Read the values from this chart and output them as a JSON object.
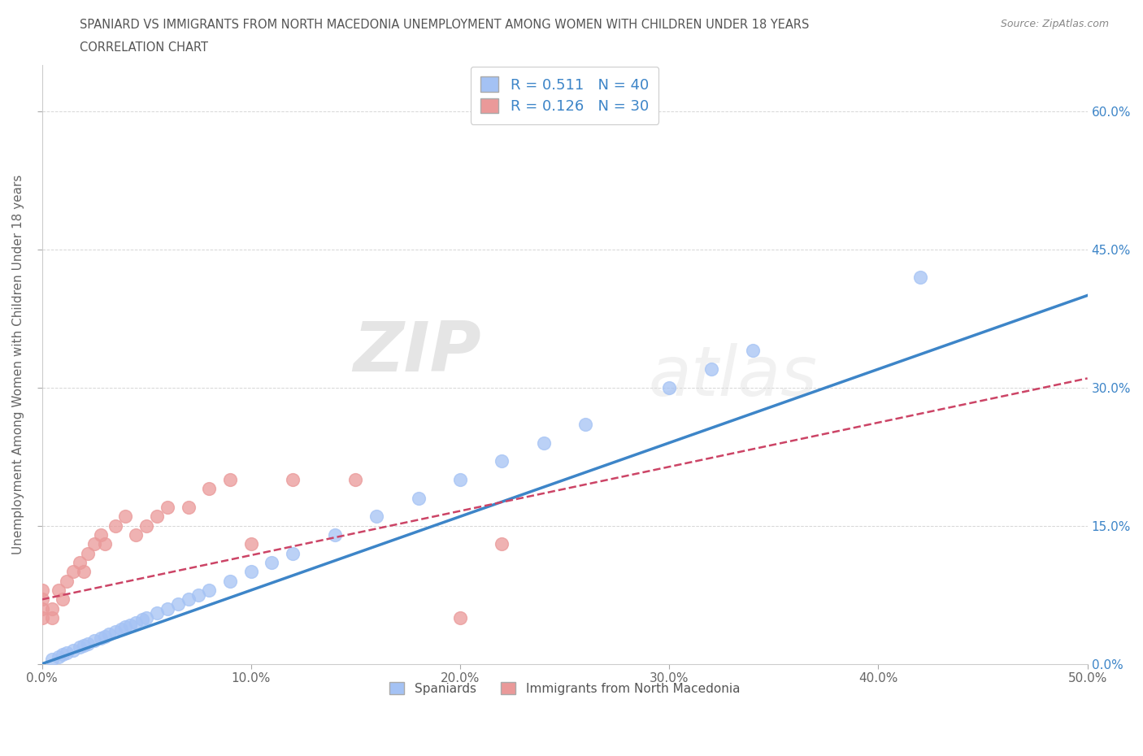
{
  "title_line1": "SPANIARD VS IMMIGRANTS FROM NORTH MACEDONIA UNEMPLOYMENT AMONG WOMEN WITH CHILDREN UNDER 18 YEARS",
  "title_line2": "CORRELATION CHART",
  "source": "Source: ZipAtlas.com",
  "ylabel": "Unemployment Among Women with Children Under 18 years",
  "xlim": [
    0.0,
    0.5
  ],
  "ylim": [
    0.0,
    0.65
  ],
  "xticks": [
    0.0,
    0.1,
    0.2,
    0.3,
    0.4,
    0.5
  ],
  "xtick_labels": [
    "0.0%",
    "10.0%",
    "20.0%",
    "30.0%",
    "40.0%",
    "50.0%"
  ],
  "ytick_positions": [
    0.0,
    0.15,
    0.3,
    0.45,
    0.6
  ],
  "ytick_labels": [
    "0.0%",
    "15.0%",
    "30.0%",
    "45.0%",
    "60.0%"
  ],
  "blue_color": "#a4c2f4",
  "pink_color": "#ea9999",
  "blue_line_color": "#3d85c8",
  "pink_line_color": "#cc4466",
  "legend_blue_R": "0.511",
  "legend_blue_N": "40",
  "legend_pink_R": "0.126",
  "legend_pink_N": "30",
  "watermark_zip": "ZIP",
  "watermark_atlas": "atlas",
  "legend_spaniards": "Spaniards",
  "legend_immigrants": "Immigrants from North Macedonia",
  "blue_scatter_x": [
    0.005,
    0.008,
    0.01,
    0.012,
    0.015,
    0.018,
    0.02,
    0.022,
    0.025,
    0.028,
    0.03,
    0.032,
    0.035,
    0.038,
    0.04,
    0.042,
    0.045,
    0.048,
    0.05,
    0.055,
    0.06,
    0.065,
    0.07,
    0.075,
    0.08,
    0.09,
    0.1,
    0.11,
    0.12,
    0.14,
    0.16,
    0.18,
    0.2,
    0.22,
    0.24,
    0.26,
    0.3,
    0.32,
    0.34,
    0.42
  ],
  "blue_scatter_y": [
    0.005,
    0.008,
    0.01,
    0.012,
    0.015,
    0.018,
    0.02,
    0.022,
    0.025,
    0.028,
    0.03,
    0.032,
    0.035,
    0.038,
    0.04,
    0.042,
    0.045,
    0.048,
    0.05,
    0.055,
    0.06,
    0.065,
    0.07,
    0.075,
    0.08,
    0.09,
    0.1,
    0.11,
    0.12,
    0.14,
    0.16,
    0.18,
    0.2,
    0.22,
    0.24,
    0.26,
    0.3,
    0.32,
    0.34,
    0.42
  ],
  "pink_scatter_x": [
    0.0,
    0.0,
    0.0,
    0.0,
    0.005,
    0.005,
    0.008,
    0.01,
    0.012,
    0.015,
    0.018,
    0.02,
    0.022,
    0.025,
    0.028,
    0.03,
    0.035,
    0.04,
    0.045,
    0.05,
    0.055,
    0.06,
    0.07,
    0.08,
    0.09,
    0.1,
    0.12,
    0.15,
    0.2,
    0.22
  ],
  "pink_scatter_y": [
    0.05,
    0.06,
    0.07,
    0.08,
    0.05,
    0.06,
    0.08,
    0.07,
    0.09,
    0.1,
    0.11,
    0.1,
    0.12,
    0.13,
    0.14,
    0.13,
    0.15,
    0.16,
    0.14,
    0.15,
    0.16,
    0.17,
    0.17,
    0.19,
    0.2,
    0.13,
    0.2,
    0.2,
    0.05,
    0.13
  ],
  "blue_trend_x0": 0.0,
  "blue_trend_x1": 0.5,
  "blue_trend_y0": 0.0,
  "blue_trend_y1": 0.4,
  "pink_trend_x0": 0.0,
  "pink_trend_x1": 0.5,
  "pink_trend_y0": 0.07,
  "pink_trend_y1": 0.31
}
